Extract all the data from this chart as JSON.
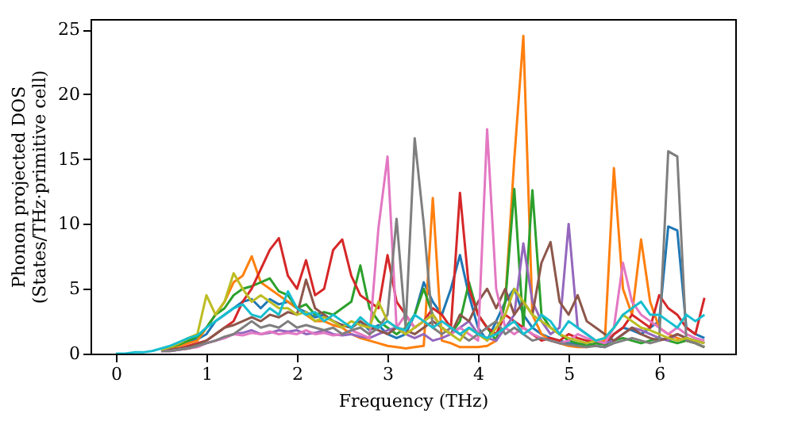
{
  "chart_data": {
    "type": "line",
    "xlabel": "Frequency (THz)",
    "ylabel": "Phonon projected DOS\n(States/THz·primitive cell)",
    "x": [
      0,
      0.1,
      0.2,
      0.3,
      0.4,
      0.5,
      0.6,
      0.7,
      0.8,
      0.9,
      1,
      1.1,
      1.2,
      1.3,
      1.4,
      1.5,
      1.6,
      1.7,
      1.8,
      1.9,
      2,
      2.1,
      2.2,
      2.3,
      2.4,
      2.5,
      2.6,
      2.7,
      2.8,
      2.9,
      3,
      3.1,
      3.2,
      3.3,
      3.4,
      3.5,
      3.6,
      3.7,
      3.8,
      3.9,
      4,
      4.1,
      4.2,
      4.3,
      4.4,
      4.5,
      4.6,
      4.7,
      4.8,
      4.9,
      5,
      5.1,
      5.2,
      5.3,
      5.4,
      5.5,
      5.6,
      5.7,
      5.8,
      5.9,
      6,
      6.1,
      6.2,
      6.3,
      6.4,
      6.5
    ],
    "series": [
      {
        "color": "#1f77b4",
        "values": [
          null,
          null,
          null,
          null,
          null,
          null,
          null,
          0.7,
          0.9,
          1.1,
          1.5,
          2.5,
          3,
          3.5,
          4,
          4.2,
          3.5,
          4.2,
          3.8,
          4,
          3.5,
          3.2,
          2.8,
          3,
          2.5,
          2.2,
          2,
          2.5,
          1.8,
          2.2,
          1.5,
          1.2,
          1.5,
          3,
          5.5,
          4,
          3,
          5,
          7.6,
          4.5,
          2,
          1,
          2.5,
          4,
          5,
          3,
          2,
          1.5,
          1.2,
          1,
          0.8,
          0.7,
          0.8,
          0.6,
          0.5,
          1.5,
          2,
          1.8,
          1.5,
          2,
          2.5,
          9.8,
          9.5,
          2,
          1.5,
          1.2
        ]
      },
      {
        "color": "#ff7f0e",
        "values": [
          null,
          null,
          null,
          null,
          null,
          0.3,
          0.4,
          0.6,
          0.8,
          1,
          2,
          3,
          4,
          5.5,
          6,
          7.5,
          5.5,
          5,
          4.5,
          4,
          3.5,
          3,
          2.5,
          2.5,
          2.2,
          2,
          1.5,
          1.2,
          1,
          0.8,
          0.6,
          0.5,
          0.4,
          0.5,
          0.6,
          12,
          1,
          0.8,
          0.5,
          0.5,
          0.5,
          0.6,
          1,
          4,
          15,
          24.5,
          3,
          1.5,
          1,
          0.8,
          0.6,
          0.5,
          0.5,
          0.8,
          1,
          14.3,
          5,
          3,
          8.8,
          4,
          2,
          1.5,
          1.2,
          1,
          0.8,
          0.5
        ]
      },
      {
        "color": "#2ca02c",
        "values": [
          null,
          null,
          null,
          null,
          null,
          0.3,
          0.5,
          0.7,
          1,
          1.3,
          2,
          3,
          3.5,
          4.5,
          5,
          5.2,
          5.5,
          5.8,
          4.8,
          4.5,
          3.5,
          3.8,
          3,
          3.2,
          3,
          3.5,
          4,
          6.8,
          3.5,
          2.5,
          2,
          1.5,
          2,
          3,
          5,
          3,
          2,
          1.5,
          2.5,
          5.5,
          3,
          2,
          1,
          4,
          12.7,
          2,
          12.6,
          3,
          2,
          1.5,
          1,
          0.8,
          0.6,
          0.8,
          0.7,
          1,
          1.2,
          1,
          0.8,
          1,
          1.2,
          1,
          0.8,
          1,
          0.8,
          0.5
        ]
      },
      {
        "color": "#d62728",
        "values": [
          null,
          null,
          null,
          null,
          null,
          0.3,
          0.3,
          0.4,
          0.6,
          0.8,
          1,
          1.5,
          2,
          2.5,
          4,
          5,
          6.5,
          8,
          8.9,
          6,
          5,
          7.2,
          4.5,
          5,
          8,
          8.8,
          6,
          4.5,
          4,
          3.5,
          7.6,
          4,
          3,
          2,
          2.5,
          3.5,
          3,
          2,
          12.4,
          5,
          3,
          2,
          1.5,
          3,
          2.5,
          2,
          1.5,
          1,
          1.2,
          1,
          1.5,
          1.2,
          1,
          1,
          0.8,
          1.5,
          2,
          3,
          2.5,
          2,
          4.5,
          3.5,
          3,
          2,
          1.5,
          4.3
        ]
      },
      {
        "color": "#9467bd",
        "values": [
          null,
          null,
          null,
          null,
          null,
          0.2,
          0.2,
          0.3,
          0.4,
          0.6,
          0.8,
          1,
          1.2,
          1.5,
          1.6,
          1.8,
          1.5,
          1.6,
          1.8,
          1.7,
          1.8,
          1.5,
          1.6,
          1.8,
          1.5,
          1.4,
          1.5,
          1.3,
          1.2,
          1.5,
          1.8,
          2,
          1.5,
          1.2,
          1.5,
          1,
          1.2,
          1.5,
          2,
          2.5,
          1.5,
          1.2,
          1,
          2,
          3,
          8.5,
          4,
          2.5,
          1.5,
          2,
          10,
          2,
          1.5,
          1,
          0.8,
          1,
          1.5,
          2,
          1.8,
          1.5,
          1.2,
          1,
          1.5,
          1.2,
          1,
          0.8
        ]
      },
      {
        "color": "#8c564b",
        "values": [
          null,
          null,
          null,
          null,
          null,
          0.2,
          0.3,
          0.4,
          0.5,
          0.7,
          1,
          1.5,
          2,
          2.2,
          2.5,
          2.8,
          2.5,
          3,
          2.8,
          3.2,
          3,
          5.7,
          3.5,
          3,
          2.5,
          2.2,
          2,
          2.5,
          2,
          1.8,
          1.5,
          2,
          1.8,
          1.5,
          2,
          2.5,
          2,
          1.5,
          3,
          2.5,
          4,
          5,
          3.5,
          5,
          3,
          4,
          3,
          7,
          8.6,
          4,
          3,
          4.5,
          2.5,
          2,
          1.5,
          1,
          1.5,
          2,
          1.5,
          1.2,
          1,
          1.2,
          1.5,
          1.2,
          1,
          0.8
        ]
      },
      {
        "color": "#e377c2",
        "values": [
          null,
          null,
          null,
          null,
          null,
          0.2,
          0.2,
          0.3,
          0.4,
          0.5,
          0.8,
          1,
          1.2,
          1.5,
          1.4,
          1.6,
          1.5,
          1.7,
          1.5,
          1.6,
          1.5,
          1.8,
          1.5,
          1.6,
          1.4,
          1.5,
          1.8,
          1.5,
          1.2,
          9.7,
          15.2,
          2,
          3,
          2,
          2.5,
          3,
          2,
          1.5,
          2,
          1.5,
          1,
          17.3,
          5,
          2,
          1.5,
          2,
          1.5,
          1.2,
          1,
          0.8,
          1,
          1.5,
          1.2,
          1,
          0.8,
          2,
          7,
          4,
          3,
          2.5,
          2,
          1.5,
          2,
          1.5,
          1.2,
          1
        ]
      },
      {
        "color": "#7f7f7f",
        "values": [
          null,
          null,
          null,
          null,
          null,
          0.2,
          0.2,
          0.3,
          0.4,
          0.6,
          0.8,
          1,
          1.3,
          1.5,
          2,
          2.5,
          2,
          2.2,
          2,
          2.5,
          2,
          2.2,
          2,
          1.8,
          2,
          1.5,
          1.8,
          2,
          1.5,
          2,
          3,
          10.4,
          2,
          16.6,
          10,
          2,
          1.5,
          2,
          1.5,
          1,
          1.5,
          2,
          2.5,
          1.5,
          2,
          1.5,
          1,
          1.2,
          1,
          0.8,
          0.7,
          0.6,
          0.5,
          0.6,
          0.5,
          0.8,
          1,
          1.2,
          1,
          0.8,
          1,
          15.6,
          15.2,
          1,
          0.8,
          0.5
        ]
      },
      {
        "color": "#bcbd22",
        "values": [
          null,
          null,
          null,
          null,
          null,
          0.3,
          0.5,
          0.8,
          1.2,
          1.5,
          4.5,
          3,
          4,
          6.2,
          5,
          4,
          4.5,
          4,
          3.5,
          3.5,
          3,
          3.2,
          2.5,
          2.8,
          2.5,
          2,
          2.5,
          2.2,
          2,
          4,
          2.5,
          2,
          1.5,
          2,
          2.5,
          3,
          2,
          1.5,
          1,
          2,
          1.5,
          1,
          2,
          3,
          5,
          4,
          3,
          2.5,
          2,
          1.5,
          1.2,
          1,
          0.8,
          1,
          1.2,
          2,
          3,
          2.5,
          2,
          1.8,
          1.5,
          1.2,
          1,
          1.2,
          1,
          0.8
        ]
      },
      {
        "color": "#17becf",
        "values": [
          0,
          0,
          0.1,
          0.1,
          0.2,
          0.4,
          0.6,
          0.9,
          1.2,
          1.4,
          2,
          2.5,
          3,
          3.5,
          3.8,
          3,
          2.8,
          3.5,
          3,
          4.8,
          3.5,
          3,
          3.2,
          2.5,
          3,
          2.5,
          2,
          2.8,
          2.2,
          2,
          2.5,
          2,
          1.8,
          3,
          2.5,
          2,
          2.5,
          2,
          1.5,
          2,
          1.5,
          1.2,
          1.5,
          2,
          2.5,
          1.5,
          2,
          3,
          2.5,
          1.5,
          2.5,
          2,
          1.5,
          1,
          1.2,
          2,
          3,
          3.5,
          4,
          3,
          3,
          2.5,
          2,
          3,
          2.5,
          3
        ]
      }
    ],
    "xlim": [
      -0.28,
      6.84
    ],
    "ylim": [
      0,
      25.8
    ],
    "xticks": [
      0,
      1,
      2,
      3,
      4,
      5,
      6
    ],
    "yticks": [
      0,
      5,
      10,
      15,
      20,
      25
    ],
    "grid": false,
    "legend": false,
    "line_style": "solid",
    "marker": "none"
  }
}
